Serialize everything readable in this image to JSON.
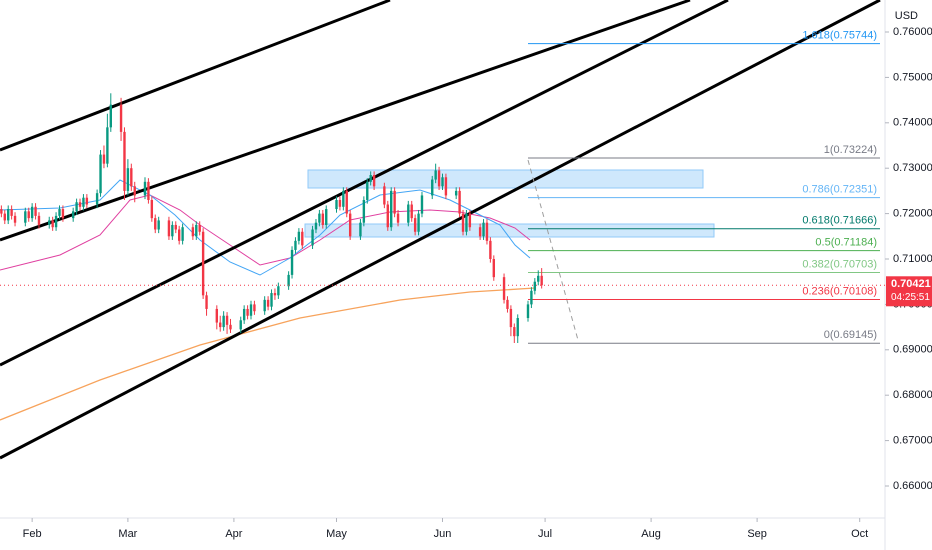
{
  "chart_data": {
    "type": "candlestick",
    "currency": "USD",
    "up_color": "#089981",
    "down_color": "#f23645",
    "xlim": [
      22.6,
      281.4
    ],
    "xticks": [
      {
        "value": 32,
        "label": "Feb"
      },
      {
        "value": 60,
        "label": "Mar"
      },
      {
        "value": 91,
        "label": "Apr"
      },
      {
        "value": 121,
        "label": "May"
      },
      {
        "value": 152,
        "label": "Jun"
      },
      {
        "value": 182,
        "label": "Jul"
      },
      {
        "value": 213,
        "label": "Aug"
      },
      {
        "value": 244,
        "label": "Sep"
      },
      {
        "value": 274,
        "label": "Oct"
      }
    ],
    "ylim": [
      0.65295,
      0.76705
    ],
    "yticks": [
      {
        "value": 0.66,
        "label": "0.66000"
      },
      {
        "value": 0.67,
        "label": "0.67000"
      },
      {
        "value": 0.68,
        "label": "0.68000"
      },
      {
        "value": 0.69,
        "label": "0.69000"
      },
      {
        "value": 0.7,
        "label": "0.70000"
      },
      {
        "value": 0.71,
        "label": "0.71000"
      },
      {
        "value": 0.72,
        "label": "0.72000"
      },
      {
        "value": 0.73,
        "label": "0.73000"
      },
      {
        "value": 0.74,
        "label": "0.74000"
      },
      {
        "value": 0.75,
        "label": "0.75000"
      },
      {
        "value": 0.76,
        "label": "0.76000"
      }
    ],
    "last_price": {
      "value": 0.70421,
      "label": "0.70421"
    },
    "countdown": "04:25:51",
    "fib_levels": [
      {
        "value": 0.75744,
        "label": "1.618(0.75744)",
        "color": "#2196f3"
      },
      {
        "value": 0.73224,
        "label": "1(0.73224)",
        "color": "#787b86"
      },
      {
        "value": 0.72351,
        "label": "0.786(0.72351)",
        "color": "#64b5f6"
      },
      {
        "value": 0.71666,
        "label": "0.618(0.71666)",
        "color": "#00796b"
      },
      {
        "value": 0.71184,
        "label": "0.5(0.71184)",
        "color": "#4caf50"
      },
      {
        "value": 0.70703,
        "label": "0.382(0.70703)",
        "color": "#81c784"
      },
      {
        "value": 0.70108,
        "label": "0.236(0.70108)",
        "color": "#f23645"
      },
      {
        "value": 0.69145,
        "label": "0(0.69145)",
        "color": "#787b86"
      }
    ],
    "x": [
      23,
      24,
      25,
      26,
      27,
      30,
      31,
      32,
      33,
      34,
      37,
      38,
      39,
      40,
      41,
      44,
      45,
      46,
      47,
      48,
      51,
      52,
      53,
      54,
      55,
      58,
      59,
      60,
      61,
      62,
      65,
      66,
      67,
      68,
      69,
      72,
      73,
      74,
      75,
      76,
      79,
      80,
      81,
      82,
      83,
      86,
      87,
      88,
      89,
      90,
      93,
      94,
      95,
      96,
      97,
      100,
      101,
      102,
      103,
      104,
      107,
      108,
      109,
      110,
      111,
      114,
      115,
      116,
      117,
      118,
      121,
      122,
      123,
      124,
      125,
      128,
      129,
      130,
      131,
      132,
      135,
      136,
      137,
      138,
      139,
      142,
      143,
      144,
      145,
      146,
      149,
      150,
      151,
      152,
      153,
      156,
      157,
      158,
      159,
      160,
      163,
      164,
      165,
      166,
      167,
      170,
      171,
      172,
      173,
      174,
      177,
      178,
      179,
      180,
      181
    ],
    "ohlc": [
      [
        0.721,
        0.7218,
        0.7192,
        0.72
      ],
      [
        0.72,
        0.7208,
        0.7177,
        0.7185
      ],
      [
        0.7185,
        0.7218,
        0.7177,
        0.721
      ],
      [
        0.721,
        0.7218,
        0.7187,
        0.7195
      ],
      [
        0.7195,
        0.7203,
        0.7172,
        0.718
      ],
      [
        0.718,
        0.7213,
        0.7172,
        0.7205
      ],
      [
        0.7205,
        0.7213,
        0.7182,
        0.719
      ],
      [
        0.719,
        0.7223,
        0.7182,
        0.7215
      ],
      [
        0.7215,
        0.7223,
        0.7187,
        0.7195
      ],
      [
        0.7195,
        0.7203,
        0.7167,
        0.7175
      ],
      [
        0.7175,
        0.7193,
        0.7167,
        0.7185
      ],
      [
        0.7185,
        0.7193,
        0.7162,
        0.717
      ],
      [
        0.717,
        0.7203,
        0.7162,
        0.7195
      ],
      [
        0.7195,
        0.7218,
        0.7187,
        0.721
      ],
      [
        0.721,
        0.7218,
        0.7182,
        0.719
      ],
      [
        0.719,
        0.7213,
        0.7182,
        0.7205
      ],
      [
        0.7205,
        0.7233,
        0.7197,
        0.7225
      ],
      [
        0.7225,
        0.7233,
        0.7207,
        0.7215
      ],
      [
        0.7215,
        0.7243,
        0.7207,
        0.7235
      ],
      [
        0.7235,
        0.7243,
        0.7212,
        0.722
      ],
      [
        0.722,
        0.7253,
        0.7212,
        0.7245
      ],
      [
        0.7245,
        0.734,
        0.7237,
        0.733
      ],
      [
        0.733,
        0.735,
        0.73,
        0.731
      ],
      [
        0.731,
        0.742,
        0.7302,
        0.739
      ],
      [
        0.739,
        0.7465,
        0.738,
        0.744
      ],
      [
        0.744,
        0.7455,
        0.736,
        0.738
      ],
      [
        0.738,
        0.739,
        0.723,
        0.725
      ],
      [
        0.725,
        0.732,
        0.724,
        0.73
      ],
      [
        0.73,
        0.731,
        0.725,
        0.726
      ],
      [
        0.726,
        0.727,
        0.7225,
        0.724
      ],
      [
        0.724,
        0.728,
        0.7232,
        0.727
      ],
      [
        0.727,
        0.7278,
        0.7222,
        0.723
      ],
      [
        0.723,
        0.7238,
        0.7182,
        0.719
      ],
      [
        0.719,
        0.7198,
        0.7157,
        0.7165
      ],
      [
        0.7165,
        0.7193,
        0.7157,
        0.7185
      ],
      [
        0.7185,
        0.7193,
        0.7142,
        0.715
      ],
      [
        0.715,
        0.7183,
        0.7142,
        0.7175
      ],
      [
        0.7175,
        0.7183,
        0.7157,
        0.7165
      ],
      [
        0.7165,
        0.7173,
        0.7132,
        0.714
      ],
      [
        0.714,
        0.7178,
        0.7132,
        0.717
      ],
      [
        0.717,
        0.7178,
        0.7142,
        0.715
      ],
      [
        0.715,
        0.7183,
        0.7142,
        0.7175
      ],
      [
        0.7175,
        0.7183,
        0.7152,
        0.716
      ],
      [
        0.716,
        0.7168,
        0.7012,
        0.702
      ],
      [
        0.702,
        0.7028,
        0.6975,
        0.699
      ],
      [
        0.699,
        0.6998,
        0.6945,
        0.696
      ],
      [
        0.696,
        0.6975,
        0.694,
        0.695
      ],
      [
        0.695,
        0.6985,
        0.6942,
        0.6975
      ],
      [
        0.6975,
        0.6983,
        0.6935,
        0.6955
      ],
      [
        0.6955,
        0.6968,
        0.6937,
        0.6945
      ],
      [
        0.6945,
        0.6973,
        0.6937,
        0.6965
      ],
      [
        0.6965,
        0.6998,
        0.6957,
        0.699
      ],
      [
        0.699,
        0.6998,
        0.6967,
        0.6975
      ],
      [
        0.6975,
        0.7008,
        0.6967,
        0.7
      ],
      [
        0.7,
        0.7008,
        0.6977,
        0.6985
      ],
      [
        0.6985,
        0.7018,
        0.6977,
        0.701
      ],
      [
        0.701,
        0.7018,
        0.6987,
        0.6995
      ],
      [
        0.6995,
        0.7033,
        0.6987,
        0.7025
      ],
      [
        0.7025,
        0.7035,
        0.701,
        0.702
      ],
      [
        0.702,
        0.7048,
        0.7012,
        0.704
      ],
      [
        0.704,
        0.7073,
        0.7032,
        0.7065
      ],
      [
        0.7065,
        0.7128,
        0.7057,
        0.712
      ],
      [
        0.712,
        0.7148,
        0.7112,
        0.714
      ],
      [
        0.714,
        0.7168,
        0.7132,
        0.716
      ],
      [
        0.716,
        0.7168,
        0.7122,
        0.713
      ],
      [
        0.713,
        0.7173,
        0.7122,
        0.7165
      ],
      [
        0.7165,
        0.7188,
        0.7157,
        0.718
      ],
      [
        0.718,
        0.7208,
        0.7172,
        0.72
      ],
      [
        0.72,
        0.7208,
        0.7167,
        0.7175
      ],
      [
        0.7175,
        0.7218,
        0.7167,
        0.721
      ],
      [
        0.721,
        0.7238,
        0.7202,
        0.723
      ],
      [
        0.723,
        0.7238,
        0.7207,
        0.7215
      ],
      [
        0.7215,
        0.7258,
        0.7207,
        0.725
      ],
      [
        0.725,
        0.7258,
        0.7192,
        0.72
      ],
      [
        0.72,
        0.7208,
        0.7142,
        0.715
      ],
      [
        0.715,
        0.7188,
        0.7142,
        0.718
      ],
      [
        0.718,
        0.7238,
        0.7172,
        0.723
      ],
      [
        0.723,
        0.7278,
        0.7222,
        0.727
      ],
      [
        0.727,
        0.7293,
        0.7262,
        0.7285
      ],
      [
        0.7285,
        0.7293,
        0.7252,
        0.726
      ],
      [
        0.726,
        0.7268,
        0.7212,
        0.722
      ],
      [
        0.722,
        0.7228,
        0.7162,
        0.717
      ],
      [
        0.717,
        0.7258,
        0.7162,
        0.725
      ],
      [
        0.725,
        0.7258,
        0.7192,
        0.72
      ],
      [
        0.72,
        0.7208,
        0.7172,
        0.718
      ],
      [
        0.718,
        0.7228,
        0.7172,
        0.722
      ],
      [
        0.722,
        0.7228,
        0.7182,
        0.719
      ],
      [
        0.719,
        0.7198,
        0.7152,
        0.716
      ],
      [
        0.716,
        0.7208,
        0.7152,
        0.72
      ],
      [
        0.72,
        0.7248,
        0.7192,
        0.724
      ],
      [
        0.724,
        0.7283,
        0.7232,
        0.7275
      ],
      [
        0.7275,
        0.731,
        0.7267,
        0.7295
      ],
      [
        0.7295,
        0.7303,
        0.7252,
        0.726
      ],
      [
        0.726,
        0.7288,
        0.7252,
        0.728
      ],
      [
        0.728,
        0.7288,
        0.7232,
        0.724
      ],
      [
        0.724,
        0.7258,
        0.7232,
        0.725
      ],
      [
        0.725,
        0.7258,
        0.7192,
        0.72
      ],
      [
        0.72,
        0.7208,
        0.7152,
        0.716
      ],
      [
        0.716,
        0.7208,
        0.7152,
        0.72
      ],
      [
        0.72,
        0.7208,
        0.7162,
        0.717
      ],
      [
        0.717,
        0.7178,
        0.7142,
        0.715
      ],
      [
        0.715,
        0.7188,
        0.7142,
        0.718
      ],
      [
        0.718,
        0.7188,
        0.7132,
        0.714
      ],
      [
        0.714,
        0.7148,
        0.7092,
        0.71
      ],
      [
        0.71,
        0.7108,
        0.7052,
        0.706
      ],
      [
        0.706,
        0.7068,
        0.7002,
        0.701
      ],
      [
        0.701,
        0.7018,
        0.6982,
        0.699
      ],
      [
        0.699,
        0.6998,
        0.693,
        0.695
      ],
      [
        0.695,
        0.6958,
        0.6915,
        0.693
      ],
      [
        0.693,
        0.6978,
        0.6915,
        0.697
      ],
      [
        0.697,
        0.7008,
        0.6962,
        0.7
      ],
      [
        0.7,
        0.7038,
        0.6992,
        0.703
      ],
      [
        0.703,
        0.7058,
        0.7022,
        0.705
      ],
      [
        0.705,
        0.7075,
        0.7042,
        0.7063
      ],
      [
        0.7063,
        0.708,
        0.7035,
        0.70421
      ]
    ]
  }
}
